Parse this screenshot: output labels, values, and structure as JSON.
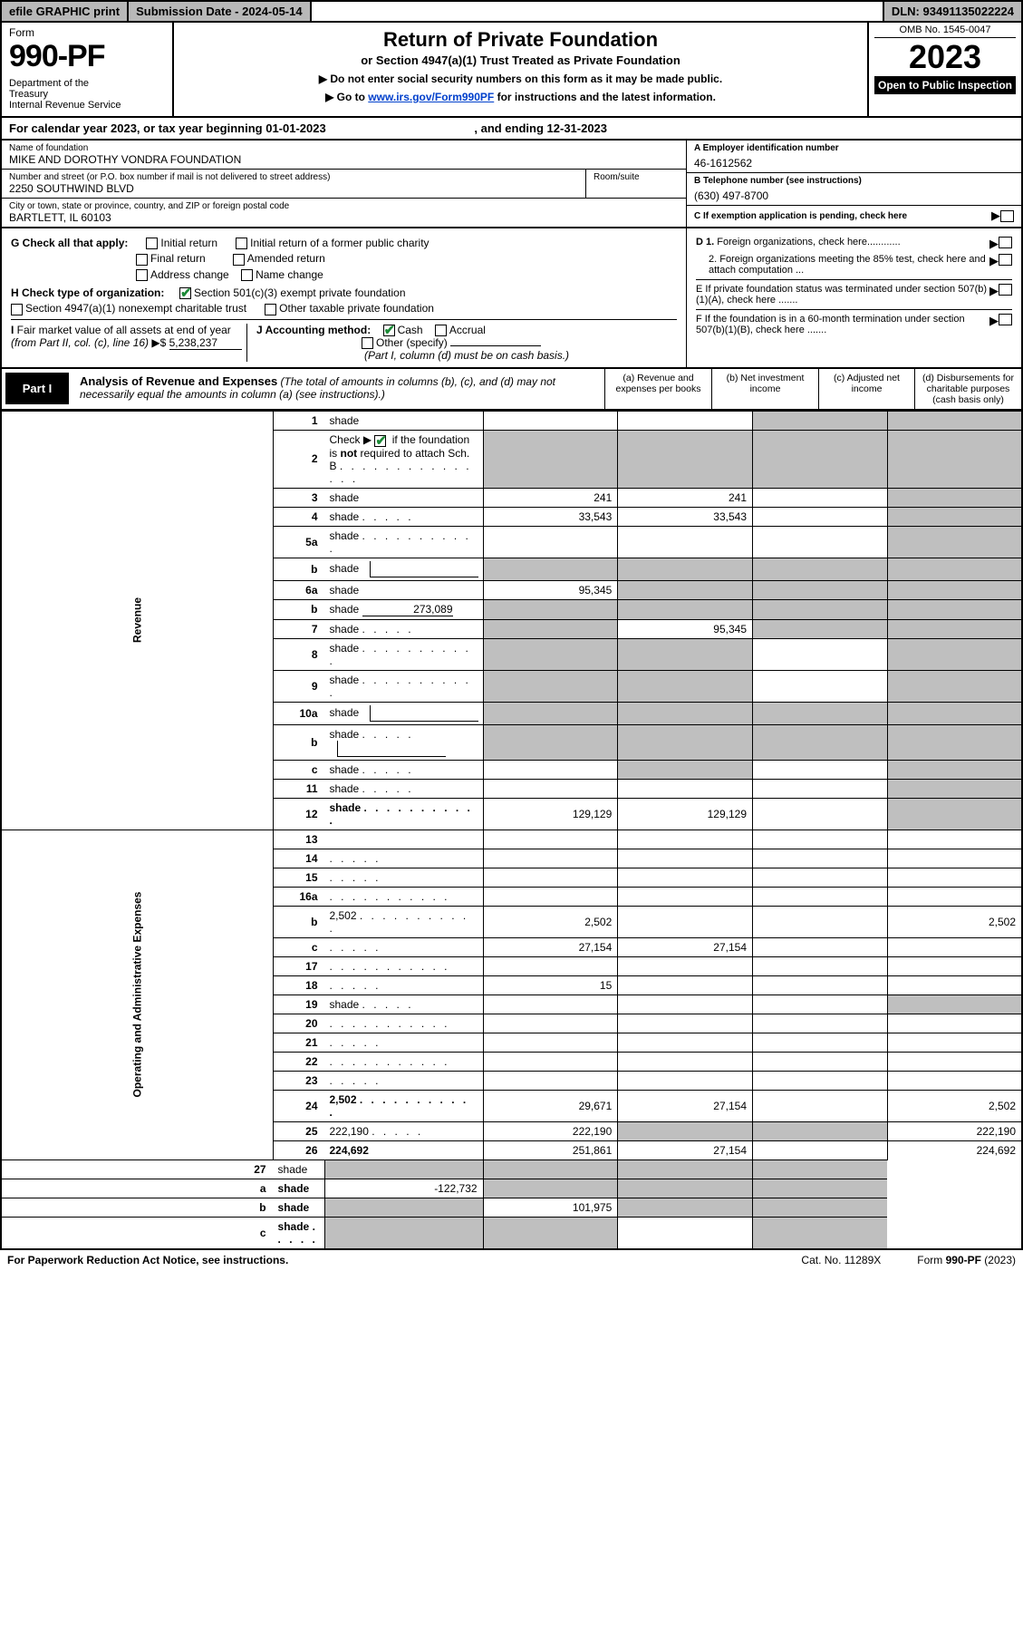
{
  "topbar": {
    "efile": "efile GRAPHIC print",
    "submission": "Submission Date - 2024-05-14",
    "dln": "DLN: 93491135022224"
  },
  "header": {
    "form_label": "Form",
    "form_number": "990-PF",
    "dept": "Department of the Treasury\nInternal Revenue Service",
    "title": "Return of Private Foundation",
    "subtitle": "or Section 4947(a)(1) Trust Treated as Private Foundation",
    "note1": "▶ Do not enter social security numbers on this form as it may be made public.",
    "note2_prefix": "▶ Go to ",
    "note2_link": "www.irs.gov/Form990PF",
    "note2_suffix": " for instructions and the latest information.",
    "omb": "OMB No. 1545-0047",
    "year": "2023",
    "open": "Open to Public Inspection"
  },
  "calendar": {
    "line": "For calendar year 2023, or tax year beginning 01-01-2023",
    "ending": ", and ending 12-31-2023"
  },
  "entity": {
    "name_lbl": "Name of foundation",
    "name": "MIKE AND DOROTHY VONDRA FOUNDATION",
    "addr_lbl": "Number and street (or P.O. box number if mail is not delivered to street address)",
    "addr": "2250 SOUTHWIND BLVD",
    "room_lbl": "Room/suite",
    "city_lbl": "City or town, state or province, country, and ZIP or foreign postal code",
    "city": "BARTLETT, IL  60103",
    "ein_lbl": "A Employer identification number",
    "ein": "46-1612562",
    "phone_lbl": "B Telephone number (see instructions)",
    "phone": "(630) 497-8700",
    "pending_lbl": "C If exemption application is pending, check here"
  },
  "checks": {
    "g_lbl": "G Check all that apply:",
    "g_opts": [
      "Initial return",
      "Initial return of a former public charity",
      "Final return",
      "Amended return",
      "Address change",
      "Name change"
    ],
    "h_lbl": "H Check type of organization:",
    "h_opt1": "Section 501(c)(3) exempt private foundation",
    "h_opt2": "Section 4947(a)(1) nonexempt charitable trust",
    "h_opt3": "Other taxable private foundation",
    "i_lbl": "I Fair market value of all assets at end of year (from Part II, col. (c), line 16) ▶$",
    "i_val": "5,238,237",
    "j_lbl": "J Accounting method:",
    "j_cash": "Cash",
    "j_accrual": "Accrual",
    "j_other": "Other (specify)",
    "j_note": "(Part I, column (d) must be on cash basis.)",
    "d1": "D 1. Foreign organizations, check here............",
    "d2": "2. Foreign organizations meeting the 85% test, check here and attach computation ...",
    "e_lbl": "E  If private foundation status was terminated under section 507(b)(1)(A), check here .......",
    "f_lbl": "F  If the foundation is in a 60-month termination under section 507(b)(1)(B), check here ......."
  },
  "part1": {
    "tab": "Part I",
    "title": "Analysis of Revenue and Expenses",
    "title_note": "(The total of amounts in columns (b), (c), and (d) may not necessarily equal the amounts in column (a) (see instructions).)",
    "cols": {
      "a": "(a)   Revenue and expenses per books",
      "b": "(b)   Net investment income",
      "c": "(c)   Adjusted net income",
      "d": "(d)   Disbursements for charitable purposes (cash basis only)"
    }
  },
  "sidelabels": {
    "revenue": "Revenue",
    "expenses": "Operating and Administrative Expenses"
  },
  "rows": [
    {
      "n": "1",
      "d": "shade",
      "a": "",
      "b": "",
      "c": "shade"
    },
    {
      "n": "2",
      "d": "shade",
      "a": "shade",
      "b": "shade",
      "c": "shade",
      "checked": true,
      "dots": true
    },
    {
      "n": "3",
      "d": "shade",
      "a": "241",
      "b": "241",
      "c": ""
    },
    {
      "n": "4",
      "d": "shade",
      "a": "33,543",
      "b": "33,543",
      "c": "",
      "dots": "short"
    },
    {
      "n": "5a",
      "d": "shade",
      "a": "",
      "b": "",
      "c": "",
      "dots": true
    },
    {
      "n": "b",
      "d": "shade",
      "a": "shade",
      "b": "shade",
      "c": "shade",
      "inline_box": true
    },
    {
      "n": "6a",
      "d": "shade",
      "a": "95,345",
      "b": "shade",
      "c": "shade"
    },
    {
      "n": "b",
      "d": "shade",
      "a": "shade",
      "b": "shade",
      "c": "shade",
      "inline_val": "273,089"
    },
    {
      "n": "7",
      "d": "shade",
      "a": "shade",
      "b": "95,345",
      "c": "shade",
      "dots": "short"
    },
    {
      "n": "8",
      "d": "shade",
      "a": "shade",
      "b": "shade",
      "c": "",
      "dots": true
    },
    {
      "n": "9",
      "d": "shade",
      "a": "shade",
      "b": "shade",
      "c": "",
      "dots": true
    },
    {
      "n": "10a",
      "d": "shade",
      "a": "shade",
      "b": "shade",
      "c": "shade",
      "inline_box": true
    },
    {
      "n": "b",
      "d": "shade",
      "a": "shade",
      "b": "shade",
      "c": "shade",
      "inline_box": true,
      "dots": "short"
    },
    {
      "n": "c",
      "d": "shade",
      "a": "",
      "b": "shade",
      "c": "",
      "dots": "short"
    },
    {
      "n": "11",
      "d": "shade",
      "a": "",
      "b": "",
      "c": "",
      "dots": "short"
    },
    {
      "n": "12",
      "d": "shade",
      "a": "129,129",
      "b": "129,129",
      "c": "",
      "bold": true,
      "dots": true
    }
  ],
  "exp_rows": [
    {
      "n": "13",
      "d": "",
      "a": "",
      "b": "",
      "c": ""
    },
    {
      "n": "14",
      "d": "",
      "a": "",
      "b": "",
      "c": "",
      "dots": "short"
    },
    {
      "n": "15",
      "d": "",
      "a": "",
      "b": "",
      "c": "",
      "dots": "short"
    },
    {
      "n": "16a",
      "d": "",
      "a": "",
      "b": "",
      "c": "",
      "dots": true
    },
    {
      "n": "b",
      "d": "2,502",
      "a": "2,502",
      "b": "",
      "c": "",
      "dots": true
    },
    {
      "n": "c",
      "d": "",
      "a": "27,154",
      "b": "27,154",
      "c": "",
      "dots": "short"
    },
    {
      "n": "17",
      "d": "",
      "a": "",
      "b": "",
      "c": "",
      "dots": true
    },
    {
      "n": "18",
      "d": "",
      "a": "15",
      "b": "",
      "c": "",
      "dots": "short"
    },
    {
      "n": "19",
      "d": "shade",
      "a": "",
      "b": "",
      "c": "",
      "dots": "short"
    },
    {
      "n": "20",
      "d": "",
      "a": "",
      "b": "",
      "c": "",
      "dots": true
    },
    {
      "n": "21",
      "d": "",
      "a": "",
      "b": "",
      "c": "",
      "dots": "short"
    },
    {
      "n": "22",
      "d": "",
      "a": "",
      "b": "",
      "c": "",
      "dots": true
    },
    {
      "n": "23",
      "d": "",
      "a": "",
      "b": "",
      "c": "",
      "dots": "short"
    },
    {
      "n": "24",
      "d": "2,502",
      "a": "29,671",
      "b": "27,154",
      "c": "",
      "bold": true,
      "dots": true
    },
    {
      "n": "25",
      "d": "222,190",
      "a": "222,190",
      "b": "shade",
      "c": "shade",
      "dots": "short"
    },
    {
      "n": "26",
      "d": "224,692",
      "a": "251,861",
      "b": "27,154",
      "c": "",
      "bold": true
    }
  ],
  "net_rows": [
    {
      "n": "27",
      "d": "shade",
      "a": "shade",
      "b": "shade",
      "c": "shade",
      "bold": false
    },
    {
      "n": "a",
      "d": "shade",
      "a": "-122,732",
      "b": "shade",
      "c": "shade",
      "bold": true
    },
    {
      "n": "b",
      "d": "shade",
      "a": "shade",
      "b": "101,975",
      "c": "shade",
      "bold": true
    },
    {
      "n": "c",
      "d": "shade",
      "a": "shade",
      "b": "shade",
      "c": "",
      "bold": true,
      "dots": "short"
    }
  ],
  "footer": {
    "left": "For Paperwork Reduction Act Notice, see instructions.",
    "mid": "Cat. No. 11289X",
    "right": "Form 990-PF (2023)"
  },
  "colors": {
    "shade": "#bfbfbf",
    "link": "#0040cc",
    "check_green": "#1b8a36"
  }
}
